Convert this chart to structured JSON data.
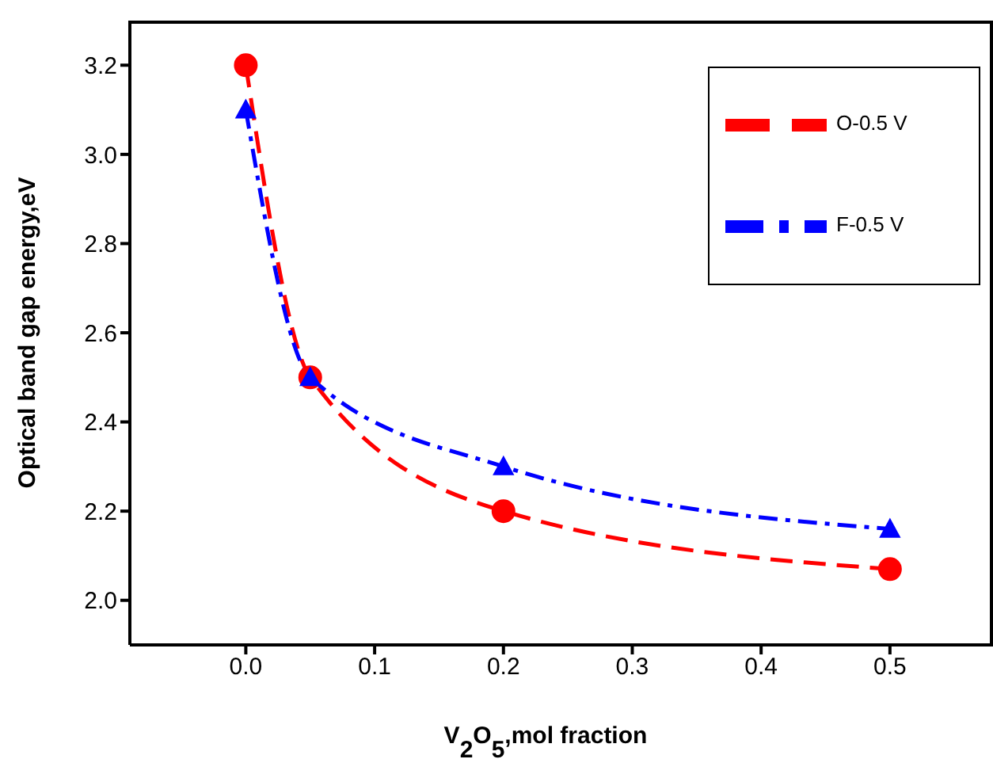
{
  "chart_data": {
    "type": "line",
    "xlabel": "V$_{2}$O$_{5}$,mol fraction",
    "ylabel": "Optical band gap energy,eV",
    "x": [
      0,
      0.05,
      0.2,
      0.5
    ],
    "series": [
      {
        "name": "O-0.5 V",
        "color": "#ff0000",
        "values": [
          3.2,
          2.5,
          2.2,
          2.07
        ],
        "marker": "circle",
        "line_style": "dashed"
      },
      {
        "name": "F-0.5 V",
        "color": "#0000ff",
        "values": [
          3.1,
          2.5,
          2.3,
          2.16
        ],
        "marker": "triangle",
        "line_style": "dashdot"
      }
    ],
    "xlim": [
      -0.09,
      0.58
    ],
    "xticks": [
      {
        "value": 0,
        "label": "0.0"
      },
      0.1,
      0.2,
      0.3,
      0.4,
      0.5
    ],
    "ylim": [
      1.9,
      3.3
    ],
    "yticks": [
      {
        "value": 2,
        "label": "2.0"
      },
      2.2,
      2.4,
      2.6,
      2.8,
      {
        "value": 3,
        "label": "3.0"
      },
      3.2
    ],
    "grid": false,
    "legend": "top right"
  }
}
